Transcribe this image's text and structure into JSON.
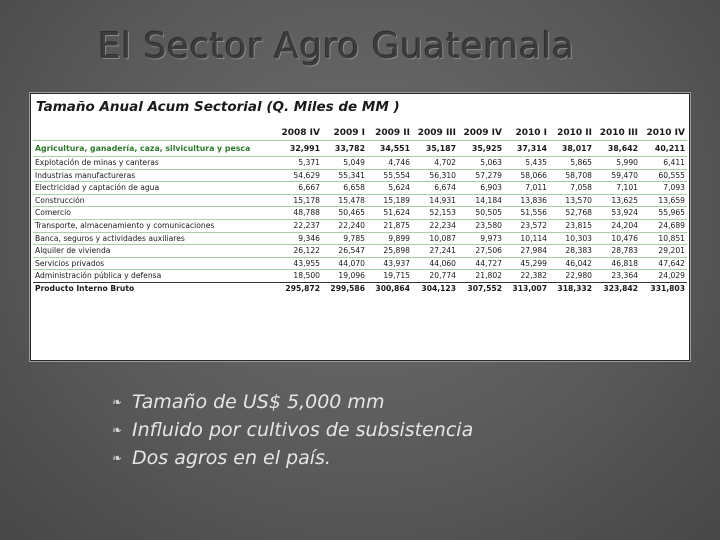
{
  "slide": {
    "title": "El Sector Agro Guatemala"
  },
  "table": {
    "caption": "Tamaño Anual Acum Sectorial (Q. Miles de MM )",
    "columns": [
      "2008 IV",
      "2009 I",
      "2009 II",
      "2009 III",
      "2009 IV",
      "2010 I",
      "2010 II",
      "2010 III",
      "2010 IV"
    ],
    "rows": [
      {
        "label": "Agricultura, ganadería, caza, silvicultura y pesca",
        "values": [
          "32,991",
          "33,782",
          "34,551",
          "35,187",
          "35,925",
          "37,314",
          "38,017",
          "38,642",
          "40,211"
        ]
      },
      {
        "label": "Explotación de minas y canteras",
        "values": [
          "5,371",
          "5,049",
          "4,746",
          "4,702",
          "5,063",
          "5,435",
          "5,865",
          "5,990",
          "6,411"
        ]
      },
      {
        "label": "Industrias manufactureras",
        "values": [
          "54,629",
          "55,341",
          "55,554",
          "56,310",
          "57,279",
          "58,066",
          "58,708",
          "59,470",
          "60,555"
        ]
      },
      {
        "label": "Electricidad y captación de agua",
        "values": [
          "6,667",
          "6,658",
          "5,624",
          "6,674",
          "6,903",
          "7,011",
          "7,058",
          "7,101",
          "7,093"
        ]
      },
      {
        "label": "Construcción",
        "values": [
          "15,178",
          "15,478",
          "15,189",
          "14,931",
          "14,184",
          "13,836",
          "13,570",
          "13,625",
          "13,659"
        ]
      },
      {
        "label": "Comercio",
        "values": [
          "48,788",
          "50,465",
          "51,624",
          "52,153",
          "50,505",
          "51,556",
          "52,768",
          "53,924",
          "55,965"
        ]
      },
      {
        "label": "Transporte, almacenamiento y comunicaciones",
        "values": [
          "22,237",
          "22,240",
          "21,875",
          "22,234",
          "23,580",
          "23,572",
          "23,815",
          "24,204",
          "24,689"
        ]
      },
      {
        "label": "Banca, seguros y actividades auxiliares",
        "values": [
          "9,346",
          "9,785",
          "9,899",
          "10,087",
          "9,973",
          "10,114",
          "10,303",
          "10,476",
          "10,851"
        ]
      },
      {
        "label": "Alquiler de vivienda",
        "values": [
          "26,122",
          "26,547",
          "25,898",
          "27,241",
          "27,506",
          "27,984",
          "28,383",
          "28,783",
          "29,201"
        ]
      },
      {
        "label": "Servicios privados",
        "values": [
          "43,955",
          "44,070",
          "43,937",
          "44,060",
          "44,727",
          "45,299",
          "46,042",
          "46,818",
          "47,642"
        ]
      },
      {
        "label": "Administración pública y defensa",
        "values": [
          "18,500",
          "19,096",
          "19,715",
          "20,774",
          "21,802",
          "22,382",
          "22,980",
          "23,364",
          "24,029"
        ]
      }
    ],
    "total": {
      "label": "Producto Interno Bruto",
      "values": [
        "295,872",
        "299,586",
        "300,864",
        "304,123",
        "307,552",
        "313,007",
        "318,332",
        "323,842",
        "331,803"
      ]
    }
  },
  "bullets": {
    "icon": "leaf-bullet-icon",
    "glyph": "❧",
    "items": [
      "Tamaño de US$ 5,000 mm",
      "Influido por cultivos de subsistencia",
      "Dos agros en el país."
    ]
  }
}
